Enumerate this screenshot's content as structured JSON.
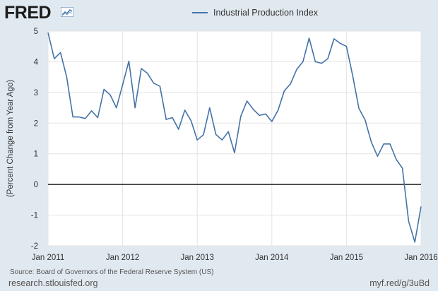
{
  "brand": {
    "name": "FRED",
    "icon": "line-chart-icon"
  },
  "footer": {
    "source": "Source: Board of Governors of the Federal Reserve System (US)",
    "site": "research.stlouisfed.org",
    "short_link": "myf.red/g/3uBd"
  },
  "colors": {
    "background": "#e1e9f0",
    "plot": "#ffffff",
    "series": "#4572a7",
    "zero_line": "#000000"
  },
  "chart_data": {
    "type": "line",
    "title": "",
    "xlabel": "",
    "ylabel": "(Percent Change from Year Ago)",
    "ylim": [
      -2,
      5
    ],
    "yticks": [
      -2,
      -1,
      0,
      1,
      2,
      3,
      4,
      5
    ],
    "xlim": [
      "2011-01",
      "2016-01"
    ],
    "xticks": [
      "Jan 2011",
      "Jan 2012",
      "Jan 2013",
      "Jan 2014",
      "Jan 2015",
      "Jan 2016"
    ],
    "grid": true,
    "legend_position": "top-center",
    "series": [
      {
        "name": "Industrial Production Index",
        "x": [
          "2011-01",
          "2011-02",
          "2011-03",
          "2011-04",
          "2011-05",
          "2011-06",
          "2011-07",
          "2011-08",
          "2011-09",
          "2011-10",
          "2011-11",
          "2011-12",
          "2012-01",
          "2012-02",
          "2012-03",
          "2012-04",
          "2012-05",
          "2012-06",
          "2012-07",
          "2012-08",
          "2012-09",
          "2012-10",
          "2012-11",
          "2012-12",
          "2013-01",
          "2013-02",
          "2013-03",
          "2013-04",
          "2013-05",
          "2013-06",
          "2013-07",
          "2013-08",
          "2013-09",
          "2013-10",
          "2013-11",
          "2013-12",
          "2014-01",
          "2014-02",
          "2014-03",
          "2014-04",
          "2014-05",
          "2014-06",
          "2014-07",
          "2014-08",
          "2014-09",
          "2014-10",
          "2014-11",
          "2014-12",
          "2015-01",
          "2015-02",
          "2015-03",
          "2015-04",
          "2015-05",
          "2015-06",
          "2015-07",
          "2015-08",
          "2015-09",
          "2015-10",
          "2015-11",
          "2015-12",
          "2016-01"
        ],
        "values": [
          4.95,
          4.1,
          4.3,
          3.5,
          2.2,
          2.2,
          2.15,
          2.4,
          2.18,
          3.1,
          2.92,
          2.5,
          3.25,
          4.02,
          2.5,
          3.78,
          3.62,
          3.3,
          3.2,
          2.12,
          2.18,
          1.8,
          2.42,
          2.08,
          1.45,
          1.62,
          2.5,
          1.63,
          1.45,
          1.72,
          1.03,
          2.22,
          2.72,
          2.45,
          2.25,
          2.3,
          2.05,
          2.42,
          3.05,
          3.28,
          3.75,
          4.0,
          4.77,
          4.0,
          3.95,
          4.1,
          4.75,
          4.6,
          4.5,
          3.55,
          2.48,
          2.1,
          1.38,
          0.92,
          1.32,
          1.32,
          0.82,
          0.53,
          -1.2,
          -1.88,
          -0.72
        ]
      }
    ]
  }
}
